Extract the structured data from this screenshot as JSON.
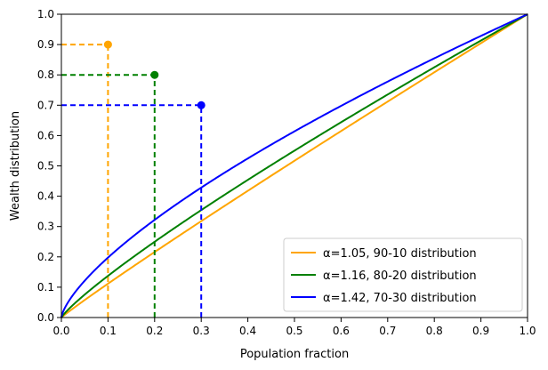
{
  "chart_data": {
    "type": "line",
    "title": "",
    "xlabel": "Population fraction",
    "ylabel": "Wealth distribution",
    "xlim": [
      0.0,
      1.0
    ],
    "ylim": [
      0.0,
      1.0
    ],
    "xticks": [
      "0.0",
      "0.1",
      "0.2",
      "0.3",
      "0.4",
      "0.5",
      "0.6",
      "0.7",
      "0.8",
      "0.9",
      "1.0"
    ],
    "yticks": [
      "0.0",
      "0.1",
      "0.2",
      "0.3",
      "0.4",
      "0.5",
      "0.6",
      "0.7",
      "0.8",
      "0.9",
      "1.0"
    ],
    "grid": false,
    "legend_position": "bottom-right",
    "series": [
      {
        "name": "α=1.05, 90-10 distribution",
        "color": "#FFA500",
        "alpha": 1.05,
        "marker": {
          "x": 0.1,
          "y": 0.9
        }
      },
      {
        "name": "α=1.16, 80-20 distribution",
        "color": "#008000",
        "alpha": 1.16,
        "marker": {
          "x": 0.2,
          "y": 0.8
        }
      },
      {
        "name": "α=1.42, 70-30 distribution",
        "color": "#0000FF",
        "alpha": 1.42,
        "marker": {
          "x": 0.3,
          "y": 0.7
        }
      }
    ]
  }
}
